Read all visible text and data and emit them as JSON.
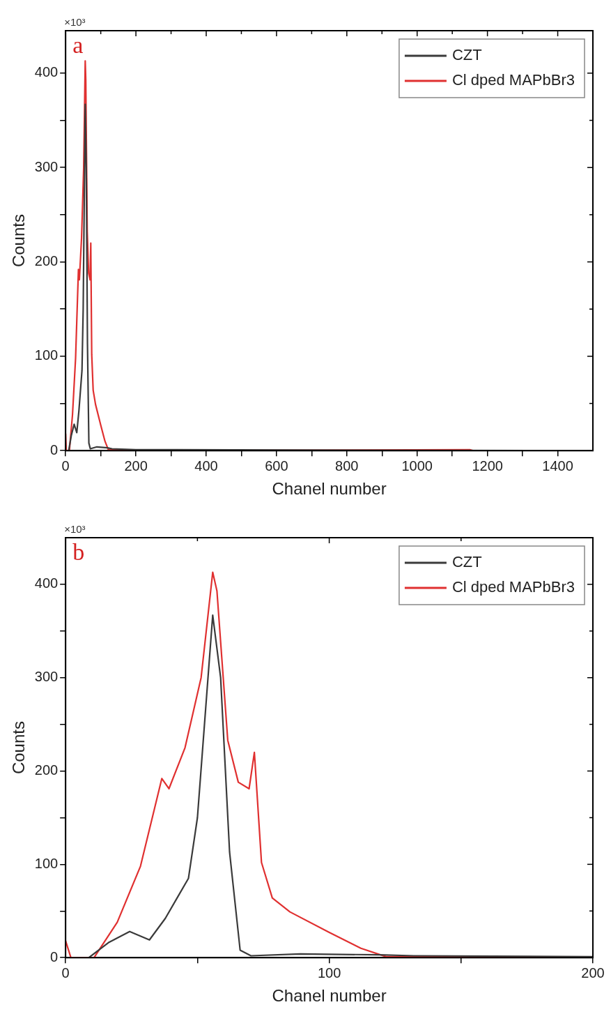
{
  "chart_data": [
    {
      "type": "line",
      "xlabel": "Chanel number",
      "ylabel": "Counts",
      "annotations": [
        "×10³",
        "a"
      ],
      "xlim": [
        0,
        1500
      ],
      "ylim": [
        0,
        445
      ],
      "xticks": [
        0,
        {
          "value": 100,
          "label": null
        },
        200,
        {
          "value": 300,
          "label": null
        },
        400,
        {
          "value": 500,
          "label": null
        },
        600,
        {
          "value": 700,
          "label": null
        },
        800,
        {
          "value": 900,
          "label": null
        },
        1000,
        {
          "value": 1100,
          "label": null
        },
        1200,
        {
          "value": 1300,
          "label": null
        },
        1400
      ],
      "yticks": [
        0,
        {
          "value": 50,
          "label": null
        },
        100,
        {
          "value": 150,
          "label": null
        },
        200,
        {
          "value": 250,
          "label": null
        },
        300,
        {
          "value": 350,
          "label": null
        },
        400
      ],
      "grid": false,
      "legend": "top right",
      "marker": "none",
      "line_style": "solid",
      "series": [
        {
          "name": "CZT",
          "color": "#3a3a3a",
          "x": [
            8.8,
            16.2,
            19.6,
            24.3,
            31.8,
            37.8,
            46.6,
            50,
            55.8,
            58.8,
            62.2,
            66.2,
            70.3,
            89,
            119,
            132,
            200,
            1500
          ],
          "values": [
            0,
            16,
            21,
            28,
            19,
            42,
            85,
            150,
            367,
            300,
            113,
            8,
            2,
            4,
            3,
            2,
            1,
            0
          ]
        },
        {
          "name": "Cl dped MAPbBr3",
          "color": "#e03030",
          "x": [
            0,
            2,
            10.8,
            19.6,
            28.4,
            36.5,
            39.2,
            45.3,
            51.4,
            55.8,
            57.4,
            61.5,
            65.5,
            69.6,
            71.6,
            74.3,
            78.4,
            85.1,
            100,
            112,
            121.6,
            132,
            200,
            1150,
            1160,
            1500
          ],
          "values": [
            18,
            0,
            0,
            38,
            98,
            192,
            181,
            225,
            300,
            413,
            393,
            233,
            188,
            181,
            220,
            102,
            64,
            49,
            27,
            10,
            1,
            1,
            0,
            1,
            0,
            0
          ]
        }
      ]
    },
    {
      "type": "line",
      "xlabel": "Chanel number",
      "ylabel": "Counts",
      "annotations": [
        "×10³",
        "b"
      ],
      "xlim": [
        0,
        200
      ],
      "ylim": [
        0,
        450
      ],
      "xticks": [
        0,
        {
          "value": 50,
          "label": null
        },
        100,
        {
          "value": 150,
          "label": null
        },
        200
      ],
      "yticks": [
        0,
        {
          "value": 50,
          "label": null
        },
        100,
        {
          "value": 150,
          "label": null
        },
        200,
        {
          "value": 250,
          "label": null
        },
        300,
        {
          "value": 350,
          "label": null
        },
        400
      ],
      "grid": false,
      "legend": "top right",
      "marker": "none",
      "line_style": "solid",
      "series": [
        {
          "name": "CZT",
          "color": "#3a3a3a",
          "x": [
            8.8,
            16.2,
            19.6,
            24.3,
            31.8,
            37.8,
            46.6,
            50,
            55.8,
            58.8,
            62.2,
            66.2,
            70.3,
            89,
            119,
            132,
            200
          ],
          "values": [
            0,
            16,
            21,
            28,
            19,
            42,
            85,
            150,
            367,
            300,
            113,
            8,
            2,
            4,
            3,
            2,
            1
          ]
        },
        {
          "name": "Cl dped MAPbBr3",
          "color": "#e03030",
          "x": [
            0,
            2,
            10.8,
            19.6,
            28.4,
            36.5,
            39.2,
            45.3,
            51.4,
            55.8,
            57.4,
            61.5,
            65.5,
            69.6,
            71.6,
            74.3,
            78.4,
            85.1,
            100,
            112,
            121.6,
            132,
            200
          ],
          "values": [
            18,
            0,
            0,
            38,
            98,
            192,
            181,
            225,
            300,
            413,
            393,
            233,
            188,
            181,
            220,
            102,
            64,
            49,
            27,
            10,
            1,
            1,
            0
          ]
        }
      ]
    }
  ]
}
